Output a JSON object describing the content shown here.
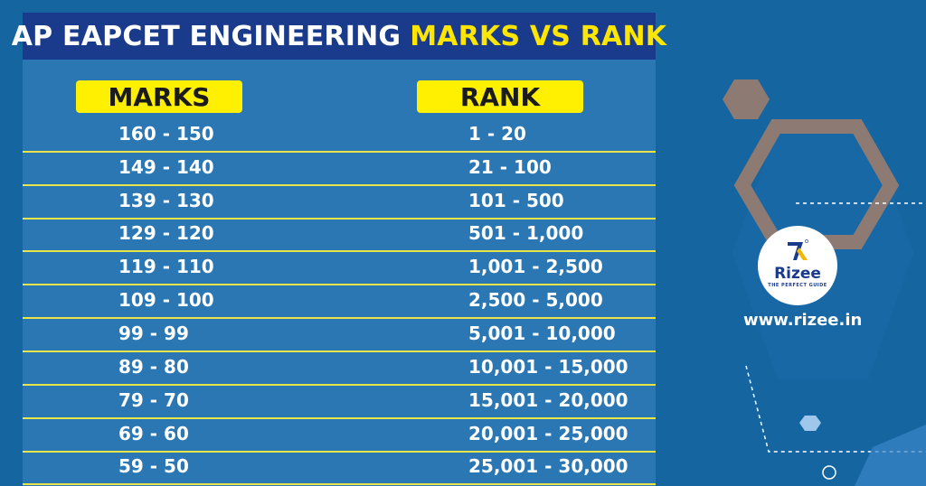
{
  "title": {
    "main": "AP EAPCET ENGINEERING",
    "accent": "MARKS VS RANK"
  },
  "table": {
    "headers": {
      "marks": "MARKS",
      "rank": "RANK"
    },
    "rows": [
      {
        "marks": "160 - 150",
        "rank": "1 - 20"
      },
      {
        "marks": "149 - 140",
        "rank": "21 - 100"
      },
      {
        "marks": "139 - 130",
        "rank": "101 - 500"
      },
      {
        "marks": "129 - 120",
        "rank": "501 - 1,000"
      },
      {
        "marks": "119 - 110",
        "rank": "1,001 - 2,500"
      },
      {
        "marks": "109 - 100",
        "rank": "2,500 - 5,000"
      },
      {
        "marks": "99 - 99",
        "rank": "5,001 - 10,000"
      },
      {
        "marks": "89 - 80",
        "rank": "10,001 - 15,000"
      },
      {
        "marks": "79 - 70",
        "rank": "15,001 - 20,000"
      },
      {
        "marks": "69 - 60",
        "rank": "20,001 - 25,000"
      },
      {
        "marks": "59 - 50",
        "rank": "25,001 - 30,000"
      }
    ]
  },
  "brand": {
    "name": "Rizee",
    "tagline": "THE PERFECT GUIDE",
    "url": "www.rizee.in"
  },
  "colors": {
    "background": "#1565a0",
    "panel": "#2b77b4",
    "title_bar": "#1a3a8c",
    "accent_yellow": "#ffe600",
    "row_divider": "#e9e64a",
    "hexagon_brown": "#8d7a72"
  }
}
